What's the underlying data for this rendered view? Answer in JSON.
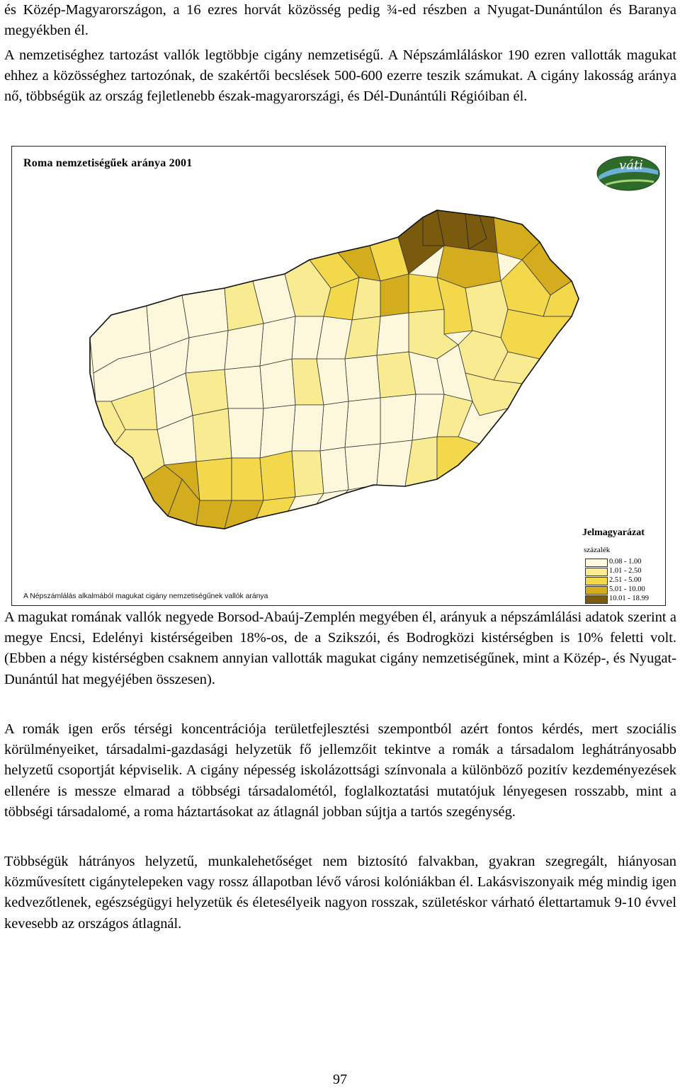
{
  "paragraphs": {
    "p1": "és Közép-Magyarországon, a 16 ezres horvát közösség pedig ¾-ed részben a Nyugat-Dunántúlon és Baranya megyékben él.",
    "p2": "A nemzetiséghez tartozást vallók legtöbbje cigány nemzetiségű. A Népszámláláskor 190 ezren vallották magukat ehhez a közösséghez tartozónak, de szakértői becslések 500-600 ezerre teszik számukat. A cigány lakosság aránya nő, többségük az ország fejletlenebb észak-magyarországi, és Dél-Dunántúli Régióiban él.",
    "p3": "A magukat romának vallók negyede Borsod-Abaúj-Zemplén megyében él, arányuk a népszámlálási adatok szerint a megye Encsi, Edelényi kistérségeiben 18%-os, de a Szikszói, és Bodrogközi kistérségben is 10% feletti volt. (Ebben a négy kistérségben csaknem annyian vallották magukat cigány nemzetiségűnek, mint a Közép-, és Nyugat-Dunántúl hat megyéjében összesen).",
    "p4": "A romák igen erős térségi koncentrációja területfejlesztési szempontból azért fontos kérdés, mert szociális körülményeiket, társadalmi-gazdasági helyzetük fő jellemzőit tekintve a romák a társadalom leghátrányosabb helyzetű csoportját képviselik. A cigány népesség iskolázottsági színvonala a különböző pozitív kezdeményezések ellenére is messze elmarad a többségi társadalométól, foglalkoztatási mutatójuk lényegesen rosszabb, mint a többségi társadalomé, a roma háztartásokat az átlagnál jobban sújtja a tartós szegénység.",
    "p5": "Többségük hátrányos helyzetű, munkalehetőséget nem biztosító falvakban, gyakran szegregált, hiányosan közművesített cigánytelepeken vagy rossz állapotban lévő városi kolóniákban él. Lakásviszonyaik még mindig igen kedvezőtlenek, egészségügyi helyzetük és életesélyeik nagyon rosszak, születéskor várható élettartamuk 9-10 évvel kevesebb az országos átlagnál."
  },
  "map": {
    "title": "Roma nemzetiségűek aránya 2001",
    "logo_text": "váti",
    "note": "A Népszámlálás alkalmából magukat cigány nemzetiségűnek vallók aránya",
    "legend": {
      "title": "Jelmagyarázat",
      "unit": "százalék",
      "classes": [
        {
          "label": "0.08 -   1.00",
          "color": "#fdf8dc"
        },
        {
          "label": "1.01 -   2.50",
          "color": "#f8eb92"
        },
        {
          "label": "2.51 -   5.00",
          "color": "#f2d84a"
        },
        {
          "label": "5.01 - 10.00",
          "color": "#d3ad1d"
        },
        {
          "label": "10.01 - 18.99",
          "color": "#7a5b0d"
        }
      ]
    }
  },
  "page_number": "97"
}
